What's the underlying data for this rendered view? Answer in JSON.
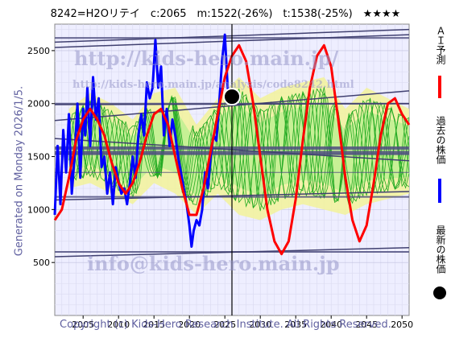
{
  "header": {
    "title": "8242=H2Oリテイ　c:2065　m:1522(-26%)　t:1538(-25%)　★★★★"
  },
  "side_label": "Generated on Monday 2026/1/5.",
  "footer": {
    "copyright": "Copyright (c) Kids-Hero Research Institute. All Rights Reserved."
  },
  "watermarks": {
    "url": "http://kids-hero.main.jp/",
    "analysis_url": "http://kids-hero.main.jp/analysis/code8242.html",
    "email": "info@kids-hero.main.jp"
  },
  "legend": [
    {
      "label": "ＡＩ予測",
      "color": "#ff0000",
      "marker": "line"
    },
    {
      "label": "過去の株価",
      "color": "#0000ff",
      "marker": "line"
    },
    {
      "label": "最新の株価",
      "color": "#000000",
      "marker": "dot"
    }
  ],
  "colors": {
    "ai_forecast": "#ff0000",
    "past_price": "#0000ff",
    "latest_price": "#000000",
    "band_fill": "#f2f2a0",
    "band_lines": "#22aa22",
    "band_light": "#aaee88",
    "trend_lines": "#404070",
    "horizontal_lines": "#505080",
    "background": "#eeeeff"
  },
  "chart_data": {
    "type": "line",
    "xlim": [
      2001,
      2051
    ],
    "ylim": [
      0,
      2750
    ],
    "x_ticks": [
      2005,
      2010,
      2015,
      2020,
      2025,
      2030,
      2035,
      2040,
      2045,
      2050
    ],
    "y_ticks": [
      500,
      1000,
      1500,
      2000,
      2500
    ],
    "current_x": 2026.0,
    "latest_price": {
      "x": 2026.0,
      "y": 2065
    },
    "grid": true,
    "horizontal_lines": [
      {
        "y": 1538,
        "weight": "bold",
        "label": "t:1538"
      },
      {
        "y": 1580,
        "weight": "bold"
      },
      {
        "y": 1522,
        "weight": "normal",
        "label": "m:1522"
      },
      {
        "y": 2000,
        "weight": "normal"
      },
      {
        "y": 1120,
        "weight": "normal"
      },
      {
        "y": 2620,
        "weight": "normal"
      },
      {
        "y": 600,
        "weight": "normal"
      },
      {
        "y": 1350,
        "weight": "thin"
      }
    ],
    "trend_lines": [
      {
        "from": [
          2001,
          2580
        ],
        "to": [
          2051,
          2700
        ]
      },
      {
        "from": [
          2001,
          2530
        ],
        "to": [
          2051,
          2650
        ]
      },
      {
        "from": [
          2001,
          1840
        ],
        "to": [
          2051,
          2120
        ]
      },
      {
        "from": [
          2001,
          1990
        ],
        "to": [
          2051,
          2000
        ]
      },
      {
        "from": [
          2001,
          1090
        ],
        "to": [
          2051,
          1170
        ]
      },
      {
        "from": [
          2001,
          555
        ],
        "to": [
          2051,
          640
        ]
      },
      {
        "from": [
          2001,
          1670
        ],
        "to": [
          2051,
          1460
        ]
      }
    ],
    "series": [
      {
        "role": "past_price",
        "x": [
          2001.0,
          2001.4,
          2001.8,
          2002.2,
          2002.6,
          2003.0,
          2003.4,
          2003.8,
          2004.2,
          2004.6,
          2005.0,
          2005.3,
          2005.6,
          2006.0,
          2006.4,
          2006.8,
          2007.2,
          2007.6,
          2008.0,
          2008.4,
          2008.8,
          2009.2,
          2009.6,
          2010.0,
          2010.4,
          2010.8,
          2011.2,
          2011.6,
          2012.0,
          2012.4,
          2012.8,
          2013.2,
          2013.6,
          2014.0,
          2014.4,
          2014.8,
          2015.2,
          2015.6,
          2016.0,
          2016.4,
          2016.8,
          2017.2,
          2017.6,
          2018.0,
          2018.4,
          2018.8,
          2019.2,
          2019.6,
          2020.0,
          2020.3,
          2020.6,
          2021.0,
          2021.4,
          2021.8,
          2022.2,
          2022.6,
          2023.0,
          2023.4,
          2023.8,
          2024.2,
          2024.6,
          2025.0,
          2025.4,
          2025.8,
          2026.0
        ],
        "y": [
          950,
          1600,
          1050,
          1750,
          1350,
          1900,
          1150,
          1500,
          2000,
          1300,
          1950,
          1700,
          2150,
          1600,
          2250,
          1850,
          2050,
          1400,
          1500,
          1150,
          1350,
          1050,
          1400,
          1250,
          1150,
          1200,
          1050,
          1250,
          1500,
          1300,
          1700,
          1900,
          1700,
          2200,
          2050,
          2150,
          2600,
          2150,
          2350,
          1700,
          1950,
          1600,
          1850,
          1700,
          1500,
          1350,
          1200,
          1050,
          850,
          650,
          800,
          900,
          850,
          1000,
          1350,
          1200,
          1500,
          1700,
          1650,
          2000,
          2400,
          2650,
          2150,
          2000,
          2065
        ]
      },
      {
        "role": "ai_forecast",
        "x": [
          2001.0,
          2002.0,
          2003.0,
          2004.0,
          2005.0,
          2006.0,
          2007.0,
          2008.0,
          2009.0,
          2010.0,
          2011.0,
          2012.0,
          2013.0,
          2014.0,
          2015.0,
          2016.0,
          2017.0,
          2018.0,
          2019.0,
          2020.0,
          2021.0,
          2022.0,
          2023.0,
          2024.0,
          2025.0,
          2026.0,
          2027.0,
          2028.0,
          2029.0,
          2030.0,
          2031.0,
          2032.0,
          2033.0,
          2034.0,
          2035.0,
          2036.0,
          2037.0,
          2038.0,
          2039.0,
          2040.0,
          2041.0,
          2042.0,
          2043.0,
          2044.0,
          2045.0,
          2046.0,
          2047.0,
          2048.0,
          2049.0,
          2050.0,
          2051.0
        ],
        "y": [
          900,
          1000,
          1300,
          1650,
          1850,
          1950,
          1850,
          1700,
          1450,
          1250,
          1150,
          1250,
          1450,
          1700,
          1900,
          1950,
          1800,
          1500,
          1200,
          950,
          950,
          1200,
          1550,
          1900,
          2250,
          2450,
          2550,
          2400,
          2000,
          1500,
          1000,
          700,
          580,
          700,
          1100,
          1650,
          2150,
          2450,
          2550,
          2350,
          1850,
          1300,
          900,
          700,
          850,
          1250,
          1700,
          2000,
          2050,
          1900,
          1800
        ]
      }
    ],
    "projection_band": {
      "x": [
        2003,
        2006,
        2009,
        2012,
        2015,
        2018,
        2021,
        2024,
        2027,
        2030,
        2033,
        2036,
        2039,
        2042,
        2045,
        2048,
        2051
      ],
      "upper": [
        1950,
        2100,
        2000,
        1850,
        2100,
        2150,
        1800,
        2050,
        2250,
        2050,
        2150,
        2200,
        2250,
        1950,
        2150,
        2050,
        1950
      ],
      "lower": [
        1200,
        1250,
        1150,
        1050,
        1250,
        1150,
        950,
        1150,
        950,
        900,
        1000,
        1050,
        1000,
        950,
        1050,
        1100,
        1150
      ]
    }
  }
}
